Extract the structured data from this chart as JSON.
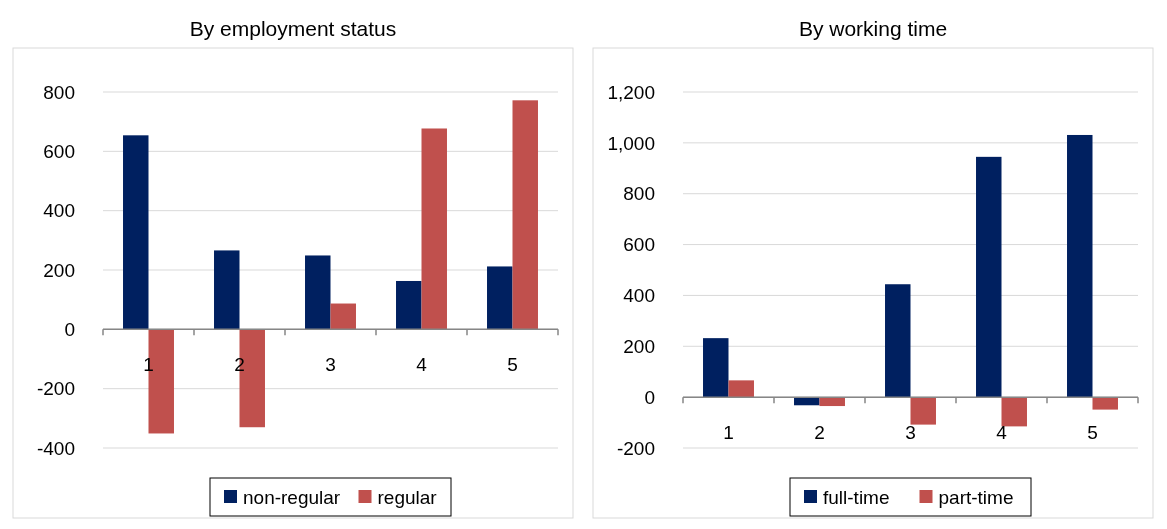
{
  "chart_data": [
    {
      "type": "bar",
      "title": "By employment status",
      "categories": [
        "1",
        "2",
        "3",
        "4",
        "5"
      ],
      "series": [
        {
          "name": "non-regular",
          "color": "#002060",
          "values": [
            654,
            266,
            249,
            163,
            212
          ]
        },
        {
          "name": "regular",
          "color": "#c0504d",
          "values": [
            -351,
            -330,
            87,
            677,
            772
          ]
        }
      ],
      "ylim": [
        -400,
        800
      ],
      "yticks": [
        -400,
        -200,
        0,
        200,
        400,
        600,
        800
      ],
      "grid": "y",
      "legend": "bottom"
    },
    {
      "type": "bar",
      "title": "By working time",
      "categories": [
        "1",
        "2",
        "3",
        "4",
        "5"
      ],
      "series": [
        {
          "name": "full-time",
          "color": "#002060",
          "values": [
            232,
            -32,
            444,
            945,
            1031
          ]
        },
        {
          "name": "part-time",
          "color": "#c0504d",
          "values": [
            66,
            -35,
            -108,
            -115,
            -49
          ]
        }
      ],
      "ylim": [
        -200,
        1200
      ],
      "yticks": [
        -200,
        0,
        200,
        400,
        600,
        800,
        {
          "value": 1000,
          "label": "1,000"
        },
        {
          "value": 1200,
          "label": "1,200"
        }
      ],
      "grid": "y",
      "legend": "bottom"
    }
  ]
}
